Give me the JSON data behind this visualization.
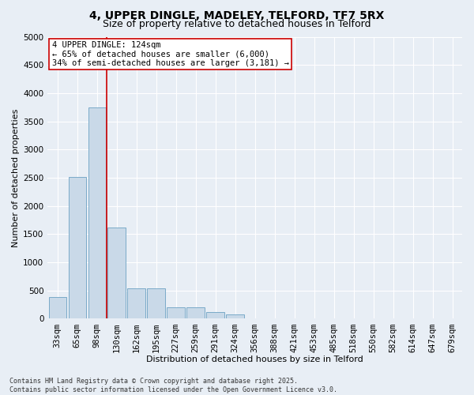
{
  "title": "4, UPPER DINGLE, MADELEY, TELFORD, TF7 5RX",
  "subtitle": "Size of property relative to detached houses in Telford",
  "xlabel": "Distribution of detached houses by size in Telford",
  "ylabel": "Number of detached properties",
  "categories": [
    "33sqm",
    "65sqm",
    "98sqm",
    "130sqm",
    "162sqm",
    "195sqm",
    "227sqm",
    "259sqm",
    "291sqm",
    "324sqm",
    "356sqm",
    "388sqm",
    "421sqm",
    "453sqm",
    "485sqm",
    "518sqm",
    "550sqm",
    "582sqm",
    "614sqm",
    "647sqm",
    "679sqm"
  ],
  "values": [
    390,
    2520,
    3750,
    1620,
    540,
    540,
    200,
    200,
    120,
    70,
    0,
    0,
    0,
    0,
    0,
    0,
    0,
    0,
    0,
    0,
    0
  ],
  "bar_color": "#c9d9e8",
  "bar_edge_color": "#7aaac8",
  "vline_index": 2.5,
  "vline_color": "#cc0000",
  "annotation_text": "4 UPPER DINGLE: 124sqm\n← 65% of detached houses are smaller (6,000)\n34% of semi-detached houses are larger (3,181) →",
  "annotation_box_color": "#ffffff",
  "annotation_box_edge": "#cc0000",
  "ylim": [
    0,
    5000
  ],
  "yticks": [
    0,
    500,
    1000,
    1500,
    2000,
    2500,
    3000,
    3500,
    4000,
    4500,
    5000
  ],
  "bg_color": "#e8eef5",
  "plot_bg_color": "#e8eef5",
  "grid_color": "#ffffff",
  "footer": "Contains HM Land Registry data © Crown copyright and database right 2025.\nContains public sector information licensed under the Open Government Licence v3.0.",
  "title_fontsize": 10,
  "subtitle_fontsize": 9,
  "xlabel_fontsize": 8,
  "ylabel_fontsize": 8,
  "annotation_fontsize": 7.5,
  "tick_fontsize": 7.5
}
